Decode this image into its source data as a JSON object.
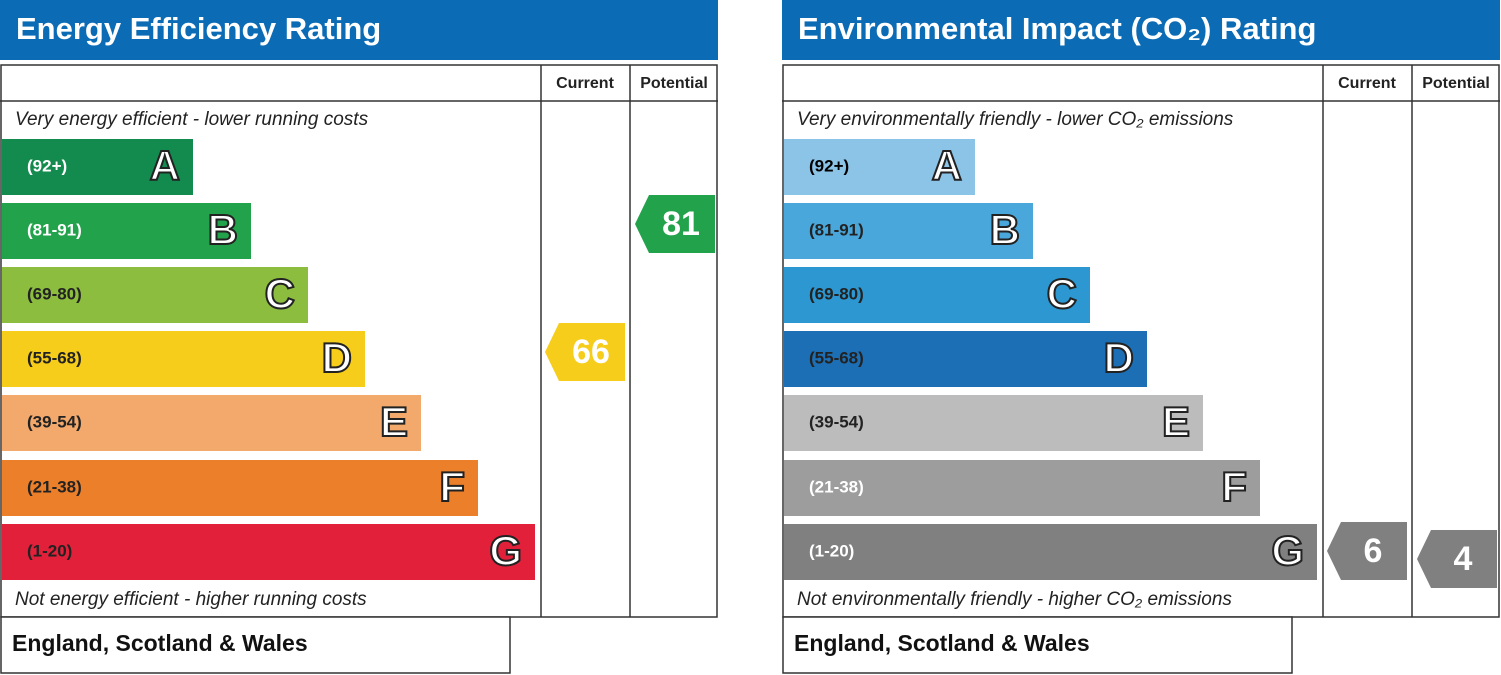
{
  "panels": [
    {
      "title": "Energy Efficiency Rating",
      "columns": [
        "Current",
        "Potential"
      ],
      "top_note": "Very energy efficient - lower running costs",
      "bottom_note": "Not energy efficient - higher running costs",
      "bands": [
        {
          "range": "(92+)",
          "letter": "A",
          "color": "#138a4e",
          "text_color": "#ffffff"
        },
        {
          "range": "(81-91)",
          "letter": "B",
          "color": "#22a24a",
          "text_color": "#ffffff"
        },
        {
          "range": "(69-80)",
          "letter": "C",
          "color": "#8cbd3f",
          "text_color": "#222222"
        },
        {
          "range": "(55-68)",
          "letter": "D",
          "color": "#f6cd1a",
          "text_color": "#222222"
        },
        {
          "range": "(39-54)",
          "letter": "E",
          "color": "#f2a96b",
          "text_color": "#222222"
        },
        {
          "range": "(21-38)",
          "letter": "F",
          "color": "#ec7f2a",
          "text_color": "#222222"
        },
        {
          "range": "(1-20)",
          "letter": "G",
          "color": "#e3203a",
          "text_color": "#222222"
        }
      ],
      "current": 66,
      "potential": 81,
      "footer": "England, Scotland & Wales"
    },
    {
      "title": "Environmental Impact (CO₂) Rating",
      "columns": [
        "Current",
        "Potential"
      ],
      "top_note": "Very environmentally friendly - lower CO₂ emissions",
      "bottom_note": "Not environmentally friendly - higher CO₂ emissions",
      "bands": [
        {
          "range": "(92+)",
          "letter": "A",
          "color": "#8cc4e8",
          "text_color": "#000000"
        },
        {
          "range": "(81-91)",
          "letter": "B",
          "color": "#4aa7dc",
          "text_color": "#222222"
        },
        {
          "range": "(69-80)",
          "letter": "C",
          "color": "#2c97d1",
          "text_color": "#222222"
        },
        {
          "range": "(55-68)",
          "letter": "D",
          "color": "#1c6fb5",
          "text_color": "#222222"
        },
        {
          "range": "(39-54)",
          "letter": "E",
          "color": "#bcbcbc",
          "text_color": "#222222"
        },
        {
          "range": "(21-38)",
          "letter": "F",
          "color": "#9d9d9d",
          "text_color": "#ffffff"
        },
        {
          "range": "(1-20)",
          "letter": "G",
          "color": "#808080",
          "text_color": "#ffffff"
        }
      ],
      "current": 6,
      "potential": 4,
      "footer": "England, Scotland & Wales"
    }
  ]
}
